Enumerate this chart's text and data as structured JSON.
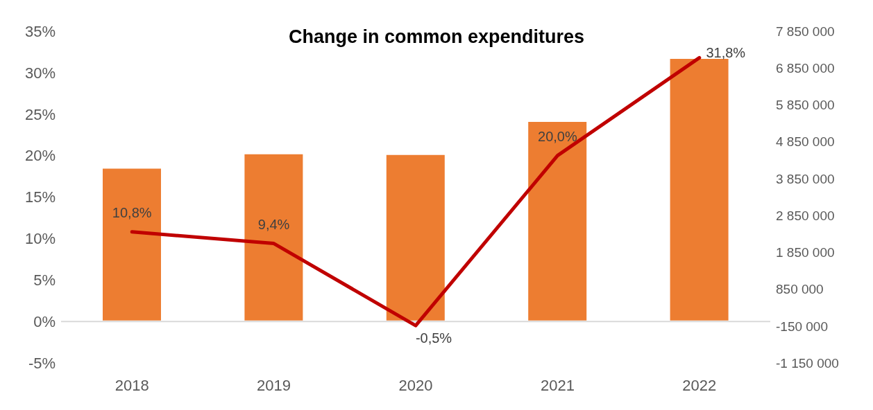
{
  "chart_data": {
    "type": "bar",
    "title": "Change in common expenditures",
    "categories": [
      "2018",
      "2019",
      "2020",
      "2021",
      "2022"
    ],
    "series": [
      {
        "axis": "y2",
        "color": "#ed7d31",
        "values": [
          4120000,
          4510000,
          4490000,
          5390000,
          7100000
        ]
      },
      {
        "type": "line",
        "color": "#c00000",
        "values": [
          10.8,
          9.4,
          -0.5,
          20.0,
          31.8
        ],
        "value_labels": [
          "10,8%",
          "9,4%",
          "-0,5%",
          "20,0%",
          "31,8%"
        ]
      }
    ],
    "ylim": [
      -5,
      35
    ],
    "yticks": [
      {
        "value": -5,
        "label": "-5%"
      },
      {
        "value": 0,
        "label": "0%"
      },
      {
        "value": 5,
        "label": "5%"
      },
      {
        "value": 10,
        "label": "10%"
      },
      {
        "value": 15,
        "label": "15%"
      },
      {
        "value": 20,
        "label": "20%"
      },
      {
        "value": 25,
        "label": "25%"
      },
      {
        "value": 30,
        "label": "30%"
      },
      {
        "value": 35,
        "label": "35%"
      }
    ],
    "y2lim": [
      -1150000,
      7850000
    ],
    "y2ticks": [
      {
        "value": -1150000,
        "label": "-1 150 000"
      },
      {
        "value": -150000,
        "label": "-150 000"
      },
      {
        "value": 850000,
        "label": "850 000"
      },
      {
        "value": 1850000,
        "label": "1 850 000"
      },
      {
        "value": 2850000,
        "label": "2 850 000"
      },
      {
        "value": 3850000,
        "label": "3 850 000"
      },
      {
        "value": 4850000,
        "label": "4 850 000"
      },
      {
        "value": 5850000,
        "label": "5 850 000"
      },
      {
        "value": 6850000,
        "label": "6 850 000"
      },
      {
        "value": 7850000,
        "label": "7 850 000"
      }
    ],
    "ref_lines": [
      {
        "axis": "y",
        "value": 0,
        "color": "#d9d9d9"
      }
    ],
    "grid": false,
    "legend": false,
    "marker": "none",
    "line_style": "solid"
  }
}
